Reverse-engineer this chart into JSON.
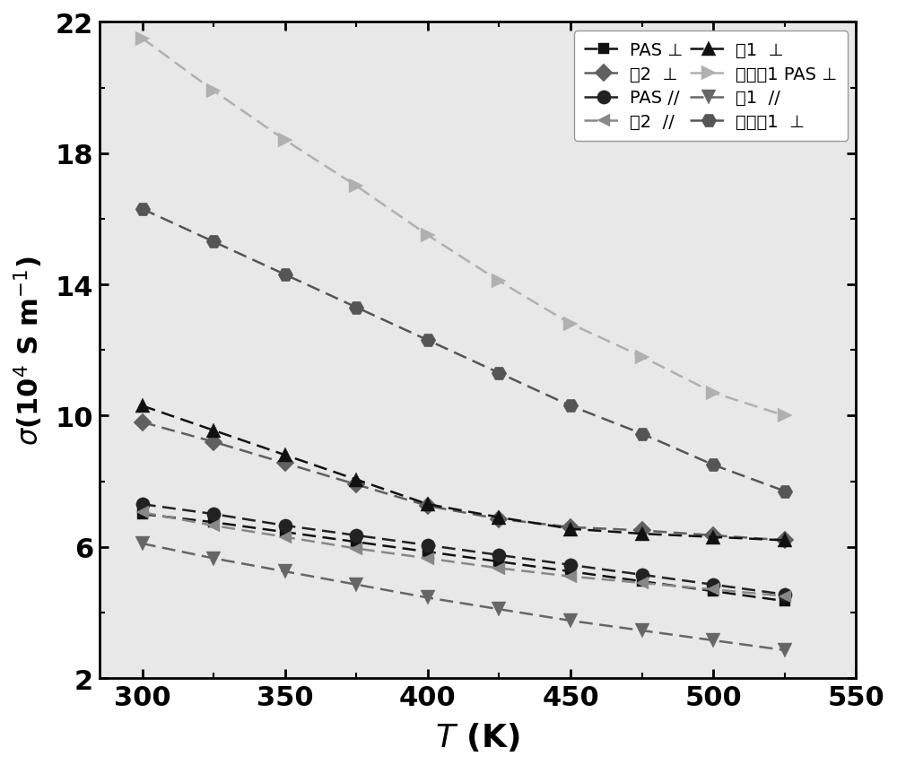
{
  "T": [
    300,
    325,
    350,
    375,
    400,
    425,
    450,
    475,
    500,
    525
  ],
  "series": [
    {
      "key": "PAS_perp",
      "label": "PAS ⊥",
      "color": "#111111",
      "marker": "s",
      "markersize": 9,
      "values": [
        7.0,
        6.75,
        6.45,
        6.15,
        5.85,
        5.55,
        5.25,
        4.95,
        4.65,
        4.35
      ]
    },
    {
      "key": "li2_perp",
      "label": "例2  ⊥",
      "color": "#606060",
      "marker": "D",
      "markersize": 10,
      "values": [
        9.8,
        9.2,
        8.55,
        7.9,
        7.25,
        6.85,
        6.6,
        6.5,
        6.35,
        6.2
      ]
    },
    {
      "key": "PAS_para",
      "label": "PAS //",
      "color": "#222222",
      "marker": "o",
      "markersize": 11,
      "values": [
        7.3,
        7.0,
        6.65,
        6.35,
        6.05,
        5.75,
        5.45,
        5.15,
        4.85,
        4.55
      ]
    },
    {
      "key": "li2_para",
      "label": "例2  //",
      "color": "#888888",
      "marker": "<",
      "markersize": 10,
      "values": [
        7.05,
        6.65,
        6.3,
        5.95,
        5.65,
        5.35,
        5.1,
        4.9,
        4.7,
        4.5
      ]
    },
    {
      "key": "li1_perp",
      "label": "例1  ⊥",
      "color": "#111111",
      "marker": "^",
      "markersize": 11,
      "values": [
        10.3,
        9.55,
        8.8,
        8.05,
        7.3,
        6.9,
        6.55,
        6.4,
        6.3,
        6.2
      ]
    },
    {
      "key": "compare1_PAS_perp",
      "label": "对比例1 PAS ⊥",
      "color": "#b0b0b0",
      "marker": ">",
      "markersize": 12,
      "values": [
        21.5,
        19.9,
        18.4,
        17.0,
        15.5,
        14.1,
        12.8,
        11.8,
        10.7,
        10.0
      ]
    },
    {
      "key": "li1_para",
      "label": "例1  //",
      "color": "#666666",
      "marker": "v",
      "markersize": 11,
      "values": [
        6.1,
        5.65,
        5.25,
        4.85,
        4.45,
        4.1,
        3.75,
        3.45,
        3.15,
        2.85
      ]
    },
    {
      "key": "compare1_perp",
      "label": "对比例1  ⊥",
      "color": "#555555",
      "marker": "H",
      "markersize": 12,
      "values": [
        16.3,
        15.3,
        14.3,
        13.3,
        12.3,
        11.3,
        10.3,
        9.45,
        8.5,
        7.7
      ]
    }
  ],
  "xlim": [
    285,
    545
  ],
  "ylim": [
    2,
    22
  ],
  "xticks": [
    300,
    350,
    400,
    450,
    500,
    550
  ],
  "yticks": [
    2,
    6,
    10,
    14,
    18,
    22
  ],
  "background_color": "#e8e8e8",
  "linewidth": 1.8,
  "dashes": [
    6,
    3
  ]
}
